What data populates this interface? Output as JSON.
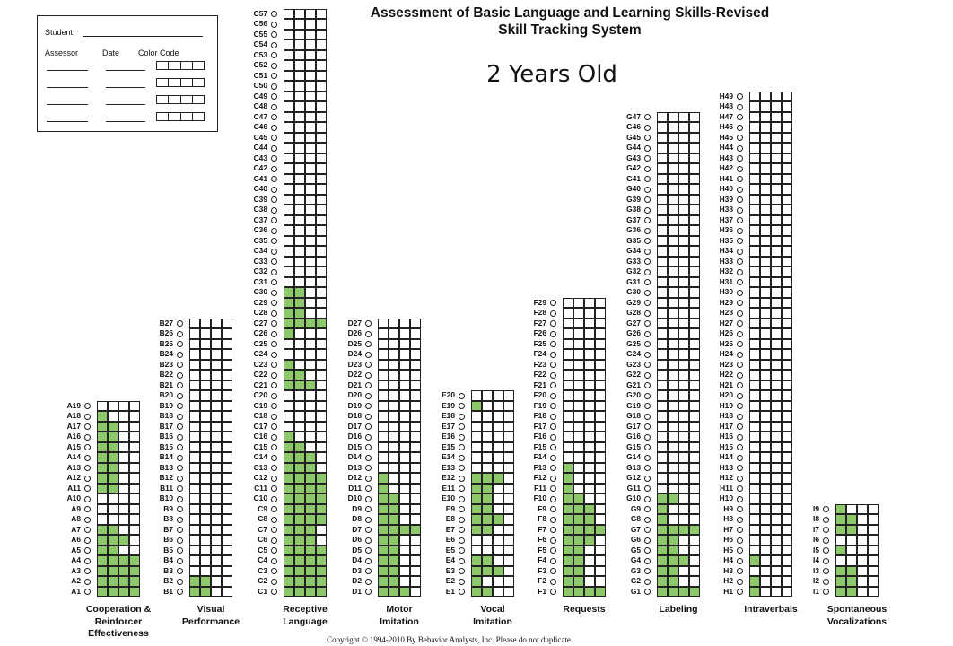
{
  "header": {
    "title": "Assessment of Basic Language and Learning Skills-Revised",
    "subtitle": "Skill Tracking System",
    "age_label": "2 Years Old"
  },
  "info_box": {
    "student_label": "Student:",
    "assessor_label": "Assessor",
    "date_label": "Date",
    "color_code_label": "Color Code"
  },
  "footer": {
    "copyright": "Copyright © 1994-2010 By Behavior Analysts, Inc.      Please do not duplicate"
  },
  "colors": {
    "filled": "#8dc96b",
    "grid": "#222222"
  },
  "columns": [
    {
      "prefix": "A",
      "count": 19,
      "caption": [
        "Cooperation &",
        "Reinforcer",
        "Effectiveness"
      ],
      "fills": [
        4,
        4,
        4,
        4,
        2,
        3,
        2,
        0,
        0,
        0,
        2,
        2,
        2,
        2,
        2,
        2,
        2,
        1,
        0
      ]
    },
    {
      "prefix": "B",
      "count": 27,
      "caption": [
        "Visual",
        "Performance"
      ],
      "fills": [
        2,
        2,
        0,
        0,
        0,
        0,
        0,
        0,
        0,
        0,
        0,
        0,
        0,
        0,
        0,
        0,
        0,
        0,
        0,
        0,
        0,
        0,
        0,
        0,
        0,
        0,
        0
      ]
    },
    {
      "prefix": "C",
      "count": 57,
      "caption": [
        "Receptive",
        "Language"
      ],
      "fills": [
        4,
        4,
        4,
        4,
        4,
        3,
        3,
        4,
        4,
        4,
        4,
        4,
        3,
        3,
        2,
        1,
        0,
        0,
        0,
        0,
        3,
        2,
        1,
        0,
        0,
        1,
        4,
        2,
        2,
        2,
        0,
        0,
        0,
        0,
        0,
        0,
        0,
        0,
        0,
        0,
        0,
        0,
        0,
        0,
        0,
        0,
        0,
        0,
        0,
        0,
        0,
        0,
        0,
        0,
        0,
        0,
        0
      ]
    },
    {
      "prefix": "D",
      "count": 27,
      "caption": [
        "Motor",
        "Imitation"
      ],
      "fills": [
        3,
        2,
        2,
        2,
        2,
        2,
        4,
        2,
        2,
        2,
        1,
        1,
        0,
        0,
        0,
        0,
        0,
        0,
        0,
        0,
        0,
        0,
        0,
        0,
        0,
        0,
        0
      ]
    },
    {
      "prefix": "E",
      "count": 20,
      "caption": [
        "Vocal",
        "Imitation"
      ],
      "fills": [
        2,
        1,
        3,
        2,
        0,
        0,
        2,
        3,
        2,
        2,
        2,
        3,
        0,
        0,
        0,
        0,
        0,
        0,
        1,
        0
      ]
    },
    {
      "prefix": "F",
      "count": 29,
      "caption": [
        "Requests"
      ],
      "fills": [
        4,
        2,
        2,
        2,
        2,
        3,
        4,
        3,
        3,
        2,
        1,
        1,
        1,
        0,
        0,
        0,
        0,
        0,
        0,
        0,
        0,
        0,
        0,
        0,
        0,
        0,
        0,
        0,
        0
      ]
    },
    {
      "prefix": "G",
      "count": 47,
      "caption": [
        "Labeling"
      ],
      "fills": [
        4,
        2,
        2,
        3,
        2,
        2,
        4,
        1,
        1,
        2,
        0,
        0,
        0,
        0,
        0,
        0,
        0,
        0,
        0,
        0,
        0,
        0,
        0,
        0,
        0,
        0,
        0,
        0,
        0,
        0,
        0,
        0,
        0,
        0,
        0,
        0,
        0,
        0,
        0,
        0,
        0,
        0,
        0,
        0,
        0,
        0,
        0
      ]
    },
    {
      "prefix": "H",
      "count": 49,
      "caption": [
        "Intraverbals"
      ],
      "fills": [
        1,
        1,
        0,
        1,
        0,
        0,
        0,
        0,
        0,
        0,
        0,
        0,
        0,
        0,
        0,
        0,
        0,
        0,
        0,
        0,
        0,
        0,
        0,
        0,
        0,
        0,
        0,
        0,
        0,
        0,
        0,
        0,
        0,
        0,
        0,
        0,
        0,
        0,
        0,
        0,
        0,
        0,
        0,
        0,
        0,
        0,
        0,
        0,
        0
      ]
    },
    {
      "prefix": "I",
      "count": 9,
      "caption": [
        "Spontaneous",
        "Vocalizations"
      ],
      "fills": [
        2,
        2,
        2,
        0,
        1,
        0,
        2,
        2,
        1
      ]
    }
  ]
}
